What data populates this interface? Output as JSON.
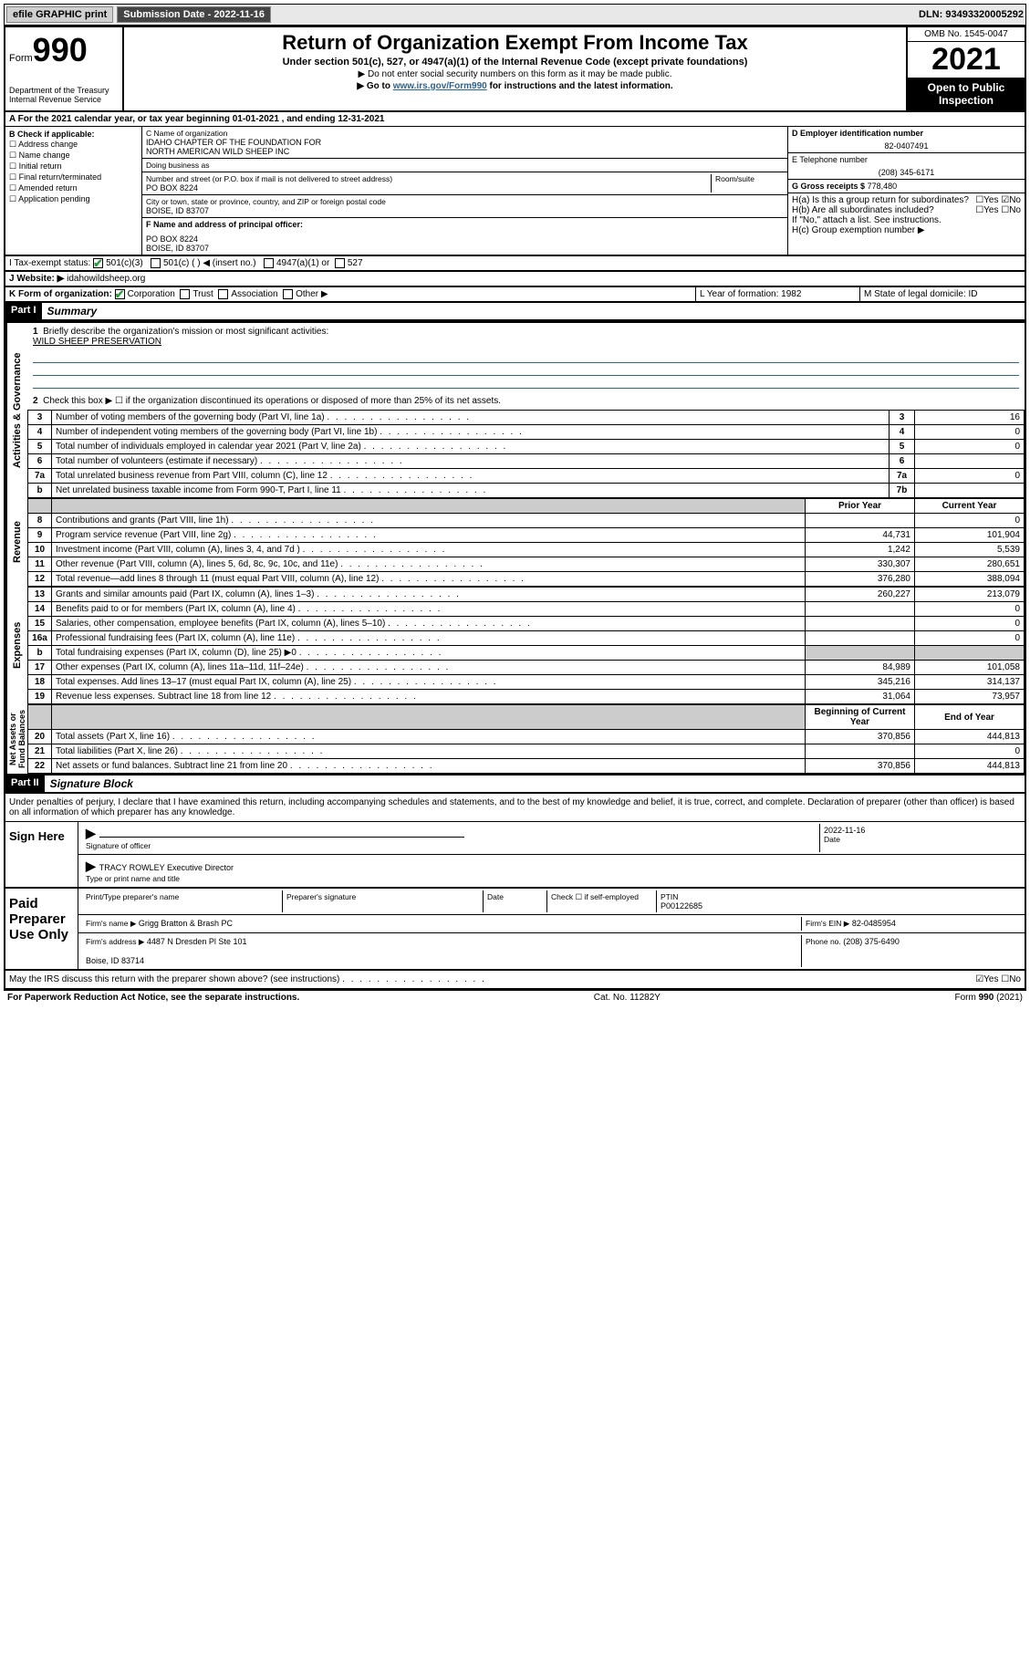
{
  "topbar": {
    "efile_label": "efile GRAPHIC print",
    "sub_label": "Submission Date - 2022-11-16",
    "dln": "DLN: 93493320005292"
  },
  "header": {
    "form_word": "Form",
    "form_num": "990",
    "dept": "Department of the Treasury\nInternal Revenue Service",
    "title": "Return of Organization Exempt From Income Tax",
    "subtitle": "Under section 501(c), 527, or 4947(a)(1) of the Internal Revenue Code (except private foundations)",
    "note1": "▶ Do not enter social security numbers on this form as it may be made public.",
    "note2_pre": "▶ Go to ",
    "note2_link": "www.irs.gov/Form990",
    "note2_post": " for instructions and the latest information.",
    "omb": "OMB No. 1545-0047",
    "year": "2021",
    "open": "Open to Public\nInspection"
  },
  "row_a": "A  For the 2021 calendar year, or tax year beginning 01-01-2021   , and ending 12-31-2021",
  "checks": {
    "hdr": "B Check if applicable:",
    "c1": "☐ Address change",
    "c2": "☐ Name change",
    "c3": "☐ Initial return",
    "c4": "☐ Final return/terminated",
    "c5": "☐ Amended return",
    "c6": "☐ Application pending"
  },
  "entity": {
    "c_label": "C Name of organization",
    "c_name": "IDAHO CHAPTER OF THE FOUNDATION FOR\nNORTH AMERICAN WILD SHEEP INC",
    "dba_label": "Doing business as",
    "addr_label": "Number and street (or P.O. box if mail is not delivered to street address)",
    "room_label": "Room/suite",
    "addr": "PO BOX 8224",
    "city_label": "City or town, state or province, country, and ZIP or foreign postal code",
    "city": "BOISE, ID  83707",
    "f_label": "F Name and address of principal officer:",
    "f_addr": "PO BOX 8224\nBOISE, ID  83707"
  },
  "right": {
    "d_label": "D Employer identification number",
    "d_val": "82-0407491",
    "e_label": "E Telephone number",
    "e_val": "(208) 345-6171",
    "g_label": "G Gross receipts $",
    "g_val": "778,480",
    "ha": "H(a)  Is this a group return for subordinates?",
    "ha_ans": "☐Yes ☑No",
    "hb": "H(b)  Are all subordinates included?",
    "hb_ans": "☐Yes ☐No",
    "hb_note": "If \"No,\" attach a list. See instructions.",
    "hc": "H(c)  Group exemption number ▶"
  },
  "row_i": {
    "label": "I    Tax-exempt status:",
    "o1": "501(c)(3)",
    "o2": "501(c) (  ) ◀ (insert no.)",
    "o3": "4947(a)(1) or",
    "o4": "527"
  },
  "row_j": {
    "label": "J    Website: ▶",
    "val": "idahowildsheep.org"
  },
  "row_k": {
    "label": "K Form of organization:",
    "o1": "Corporation",
    "o2": "Trust",
    "o3": "Association",
    "o4": "Other ▶",
    "l": "L Year of formation: 1982",
    "m": "M State of legal domicile: ID"
  },
  "part1": {
    "hdr": "Part I",
    "title": "Summary"
  },
  "summary": {
    "l1": "Briefly describe the organization's mission or most significant activities:",
    "l1_val": "WILD SHEEP PRESERVATION",
    "l2": "Check this box ▶ ☐  if the organization discontinued its operations or disposed of more than 25% of its net assets.",
    "rows_a": [
      {
        "n": "3",
        "d": "Number of voting members of the governing body (Part VI, line 1a)",
        "ln": "3",
        "v": "16"
      },
      {
        "n": "4",
        "d": "Number of independent voting members of the governing body (Part VI, line 1b)",
        "ln": "4",
        "v": "0"
      },
      {
        "n": "5",
        "d": "Total number of individuals employed in calendar year 2021 (Part V, line 2a)",
        "ln": "5",
        "v": "0"
      },
      {
        "n": "6",
        "d": "Total number of volunteers (estimate if necessary)",
        "ln": "6",
        "v": ""
      },
      {
        "n": "7a",
        "d": "Total unrelated business revenue from Part VIII, column (C), line 12",
        "ln": "7a",
        "v": "0"
      },
      {
        "n": "b",
        "d": "Net unrelated business taxable income from Form 990-T, Part I, line 11",
        "ln": "7b",
        "v": ""
      }
    ],
    "col_prior": "Prior Year",
    "col_curr": "Current Year",
    "rev": [
      {
        "n": "8",
        "d": "Contributions and grants (Part VIII, line 1h)",
        "p": "",
        "c": "0"
      },
      {
        "n": "9",
        "d": "Program service revenue (Part VIII, line 2g)",
        "p": "44,731",
        "c": "101,904"
      },
      {
        "n": "10",
        "d": "Investment income (Part VIII, column (A), lines 3, 4, and 7d )",
        "p": "1,242",
        "c": "5,539"
      },
      {
        "n": "11",
        "d": "Other revenue (Part VIII, column (A), lines 5, 6d, 8c, 9c, 10c, and 11e)",
        "p": "330,307",
        "c": "280,651"
      },
      {
        "n": "12",
        "d": "Total revenue—add lines 8 through 11 (must equal Part VIII, column (A), line 12)",
        "p": "376,280",
        "c": "388,094"
      }
    ],
    "exp": [
      {
        "n": "13",
        "d": "Grants and similar amounts paid (Part IX, column (A), lines 1–3)",
        "p": "260,227",
        "c": "213,079"
      },
      {
        "n": "14",
        "d": "Benefits paid to or for members (Part IX, column (A), line 4)",
        "p": "",
        "c": "0"
      },
      {
        "n": "15",
        "d": "Salaries, other compensation, employee benefits (Part IX, column (A), lines 5–10)",
        "p": "",
        "c": "0"
      },
      {
        "n": "16a",
        "d": "Professional fundraising fees (Part IX, column (A), line 11e)",
        "p": "",
        "c": "0"
      },
      {
        "n": "b",
        "d": "Total fundraising expenses (Part IX, column (D), line 25) ▶0",
        "p": "shaded",
        "c": "shaded"
      },
      {
        "n": "17",
        "d": "Other expenses (Part IX, column (A), lines 11a–11d, 11f–24e)",
        "p": "84,989",
        "c": "101,058"
      },
      {
        "n": "18",
        "d": "Total expenses. Add lines 13–17 (must equal Part IX, column (A), line 25)",
        "p": "345,216",
        "c": "314,137"
      },
      {
        "n": "19",
        "d": "Revenue less expenses. Subtract line 18 from line 12",
        "p": "31,064",
        "c": "73,957"
      }
    ],
    "col_beg": "Beginning of Current Year",
    "col_end": "End of Year",
    "net": [
      {
        "n": "20",
        "d": "Total assets (Part X, line 16)",
        "p": "370,856",
        "c": "444,813"
      },
      {
        "n": "21",
        "d": "Total liabilities (Part X, line 26)",
        "p": "",
        "c": "0"
      },
      {
        "n": "22",
        "d": "Net assets or fund balances. Subtract line 21 from line 20",
        "p": "370,856",
        "c": "444,813"
      }
    ]
  },
  "vert": {
    "act": "Activities & Governance",
    "rev": "Revenue",
    "exp": "Expenses",
    "net": "Net Assets or\nFund Balances"
  },
  "part2": {
    "hdr": "Part II",
    "title": "Signature Block"
  },
  "sig": {
    "decl": "Under penalties of perjury, I declare that I have examined this return, including accompanying schedules and statements, and to the best of my knowledge and belief, it is true, correct, and complete. Declaration of preparer (other than officer) is based on all information of which preparer has any knowledge.",
    "sign_here": "Sign Here",
    "sig_officer": "Signature of officer",
    "date": "Date",
    "date_val": "2022-11-16",
    "name_title": "TRACY ROWLEY  Executive Director",
    "name_lbl": "Type or print name and title",
    "paid": "Paid Preparer Use Only",
    "pt_name_lbl": "Print/Type preparer's name",
    "pt_sig_lbl": "Preparer's signature",
    "pt_date_lbl": "Date",
    "pt_check": "Check ☐ if self-employed",
    "ptin_lbl": "PTIN",
    "ptin": "P00122685",
    "firm_name_lbl": "Firm's name    ▶",
    "firm_name": "Grigg Bratton & Brash PC",
    "firm_ein_lbl": "Firm's EIN ▶",
    "firm_ein": "82-0485954",
    "firm_addr_lbl": "Firm's address ▶",
    "firm_addr": "4487 N Dresden Pl Ste 101\n\nBoise, ID  83714",
    "phone_lbl": "Phone no.",
    "phone": "(208) 375-6490",
    "may": "May the IRS discuss this return with the preparer shown above? (see instructions)",
    "may_ans": "☑Yes  ☐No"
  },
  "footer": {
    "left": "For Paperwork Reduction Act Notice, see the separate instructions.",
    "mid": "Cat. No. 11282Y",
    "right": "Form 990 (2021)"
  }
}
